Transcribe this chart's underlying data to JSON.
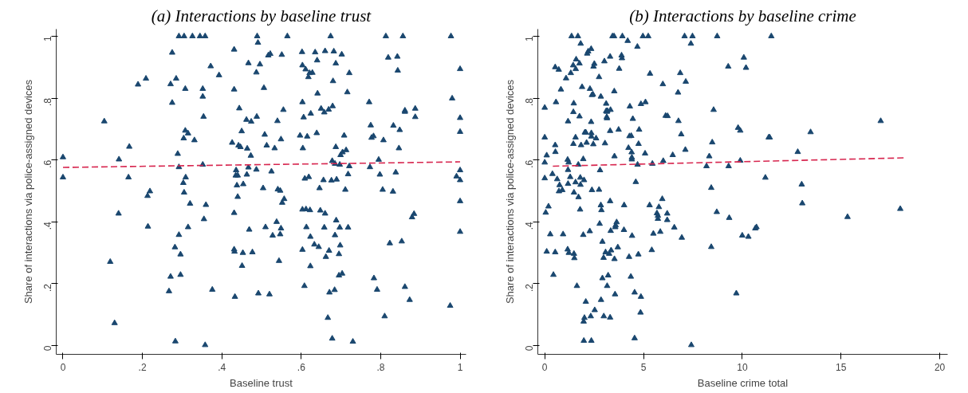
{
  "chart_data": [
    {
      "type": "scatter",
      "title": "(a) Interactions by baseline trust",
      "xlabel": "Baseline trust",
      "ylabel": "Share of interactions via police-assigned devices",
      "marker": "triangle",
      "grid": false,
      "xlim": [
        -0.017,
        1.015
      ],
      "ylim": [
        -0.028,
        1.023
      ],
      "xticks": [
        0,
        {
          "value": 0.2,
          "label": ".2"
        },
        {
          "value": 0.4,
          "label": ".4"
        },
        {
          "value": 0.6,
          "label": ".6"
        },
        {
          "value": 0.8,
          "label": ".8"
        },
        1
      ],
      "yticks": [
        0,
        {
          "value": 0.2,
          "label": ".2"
        },
        {
          "value": 0.4,
          "label": ".4"
        },
        {
          "value": 0.6,
          "label": ".6"
        },
        {
          "value": 0.8,
          "label": ".8"
        },
        1
      ],
      "series": [
        {
          "color": "#1a476f",
          "x": [
            0,
            0,
            0.104,
            0.119,
            0.13,
            0.14,
            0.141,
            0.167,
            0.165,
            0.189,
            0.209,
            0.213,
            0.219,
            0.214,
            0.267,
            0.271,
            0.271,
            0.275,
            0.275,
            0.282,
            0.283,
            0.285,
            0.289,
            0.292,
            0.292,
            0.292,
            0.296,
            0.296,
            0.305,
            0.304,
            0.305,
            0.303,
            0.308,
            0.308,
            0.309,
            0.315,
            0.315,
            0.32,
            0.326,
            0.331,
            0.345,
            0.358,
            0.352,
            0.352,
            0.354,
            0.352,
            0.36,
            0.355,
            0.358,
            0.372,
            0.376,
            0.393,
            0.431,
            0.431,
            0.426,
            0.436,
            0.435,
            0.44,
            0.438,
            0.44,
            0.431,
            0.431,
            0.432,
            0.433,
            0.444,
            0.442,
            0.447,
            0.45,
            0.451,
            0.453,
            0.454,
            0.462,
            0.464,
            0.463,
            0.467,
            0.467,
            0.469,
            0.473,
            0.474,
            0.477,
            0.487,
            0.488,
            0.487,
            0.489,
            0.491,
            0.492,
            0.496,
            0.506,
            0.508,
            0.51,
            0.504,
            0.513,
            0.517,
            0.522,
            0.52,
            0.525,
            0.528,
            0.533,
            0.538,
            0.54,
            0.541,
            0.544,
            0.547,
            0.547,
            0.549,
            0.549,
            0.551,
            0.552,
            0.555,
            0.557,
            0.565,
            0.597,
            0.602,
            0.603,
            0.603,
            0.604,
            0.603,
            0.603,
            0.606,
            0.608,
            0.609,
            0.611,
            0.612,
            0.613,
            0.615,
            0.618,
            0.619,
            0.622,
            0.621,
            0.623,
            0.623,
            0.624,
            0.628,
            0.633,
            0.635,
            0.639,
            0.64,
            0.641,
            0.644,
            0.646,
            0.648,
            0.65,
            0.656,
            0.658,
            0.658,
            0.66,
            0.66,
            0.662,
            0.667,
            0.669,
            0.67,
            0.671,
            0.674,
            0.676,
            0.678,
            0.678,
            0.679,
            0.68,
            0.682,
            0.684,
            0.685,
            0.685,
            0.687,
            0.688,
            0.687,
            0.689,
            0.695,
            0.695,
            0.697,
            0.697,
            0.698,
            0.699,
            0.702,
            0.703,
            0.704,
            0.708,
            0.711,
            0.713,
            0.716,
            0.718,
            0.718,
            0.721,
            0.721,
            0.73,
            0.771,
            0.773,
            0.775,
            0.777,
            0.782,
            0.783,
            0.791,
            0.795,
            0.798,
            0.805,
            0.807,
            0.81,
            0.813,
            0.819,
            0.823,
            0.831,
            0.832,
            0.838,
            0.842,
            0.843,
            0.846,
            0.848,
            0.853,
            0.856,
            0.861,
            0.861,
            0.861,
            0.873,
            0.879,
            0.884,
            0.887,
            0.887,
            0.975,
            0.977,
            0.98,
            0.991,
            1,
            1,
            1,
            1,
            1,
            1,
            1
          ],
          "values": [
            0.609,
            0.544,
            0.725,
            0.271,
            0.073,
            0.427,
            0.602,
            0.643,
            0.544,
            0.844,
            0.863,
            0.484,
            0.499,
            0.385,
            0.176,
            0.223,
            0.845,
            0.947,
            0.785,
            0.318,
            0.014,
            0.863,
            0.62,
            1,
            0.358,
            0.577,
            0.295,
            0.229,
            1,
            0.67,
            0.495,
            0.526,
            0.695,
            0.83,
            0.544,
            0.686,
            0.383,
            0.459,
            1,
            0.664,
            1,
            1,
            0.83,
            0.805,
            0.74,
            0.585,
            0.455,
            0.409,
            0.002,
            0.903,
            0.181,
            0.874,
            0.957,
            0.828,
            0.656,
            0.567,
            0.55,
            0.55,
            0.518,
            0.481,
            0.429,
            0.311,
            0.304,
            0.158,
            0.767,
            0.647,
            0.642,
            0.693,
            0.258,
            0.3,
            0.522,
            0.73,
            0.637,
            0.553,
            0.576,
            0.913,
            0.375,
            0.614,
            0.724,
            0.302,
            0.883,
            0.74,
            0.569,
            1,
            0.979,
            0.169,
            0.909,
            0.833,
            0.682,
            0.383,
            0.509,
            0.647,
            0.938,
            0.943,
            0.166,
            0.563,
            0.356,
            0.638,
            0.4,
            0.726,
            0.505,
            0.274,
            0.501,
            0.36,
            0.667,
            0.379,
            0.94,
            0.462,
            0.762,
            0.474,
            1,
            0.679,
            0.949,
            0.787,
            0.906,
            0.638,
            0.44,
            0.31,
            0.738,
            0.193,
            0.54,
            0.893,
            0.441,
            0.383,
            0.676,
            0.868,
            0.545,
            0.438,
            0.881,
            0.352,
            0.257,
            0.75,
            0.882,
            0.327,
            0.948,
            0.687,
            0.922,
            0.815,
            0.319,
            0.509,
            0.437,
            0.766,
            0.535,
            0.382,
            0.754,
            0.952,
            0.427,
            0.287,
            0.09,
            0.763,
            0.307,
            0.172,
            1,
            0.534,
            0.597,
            0.023,
            0.774,
            0.855,
            0.951,
            0.18,
            0.588,
            0.357,
            0.912,
            0.405,
            0.642,
            0.537,
            0.296,
            0.227,
            0.585,
            0.382,
            0.324,
            0.616,
            0.941,
            0.233,
            0.625,
            0.679,
            0.504,
            0.632,
            0.819,
            0.554,
            0.382,
            0.881,
            0.58,
            0.013,
            0.787,
            0.577,
            0.712,
            0.672,
            0.677,
            0.218,
            0.181,
            0.601,
            0.553,
            0.504,
            0.664,
            0.095,
            1,
            0.931,
            0.331,
            0.498,
            0.711,
            0.56,
            0.934,
            0.889,
            0.638,
            0.697,
            0.337,
            1,
            0.76,
            0.19,
            0.756,
            0.148,
            0.415,
            0.426,
            0.766,
            0.739,
            0.129,
            1,
            0.799,
            0.547,
            0.894,
            0.736,
            0.691,
            0.567,
            0.535,
            0.467,
            0.368
          ]
        },
        {
          "type": "line",
          "color": "#d7264f",
          "line_style": "dashed",
          "marker": "none",
          "x": [
            0,
            1
          ],
          "values": [
            0.576,
            0.594
          ]
        }
      ]
    },
    {
      "type": "scatter",
      "title": "(b) Interactions by baseline crime",
      "xlabel": "Baseline crime total",
      "ylabel": "Share of interactions via police-assigned devices",
      "marker": "triangle",
      "grid": false,
      "xlim": [
        -0.35,
        20.4
      ],
      "ylim": [
        -0.028,
        1.023
      ],
      "xticks": [
        0,
        5,
        10,
        15,
        20
      ],
      "yticks": [
        0,
        {
          "value": 0.2,
          "label": ".2"
        },
        {
          "value": 0.4,
          "label": ".4"
        },
        {
          "value": 0.6,
          "label": ".6"
        },
        {
          "value": 0.8,
          "label": ".8"
        },
        1
      ],
      "series": [
        {
          "color": "#1a476f",
          "x": [
            0,
            0,
            0,
            0,
            0.05,
            0.1,
            0.1,
            0.19,
            0.28,
            0.39,
            0.44,
            0.53,
            0.53,
            0.54,
            0.53,
            0.57,
            0.63,
            0.71,
            0.75,
            0.72,
            0.82,
            0.89,
            0.93,
            1.08,
            1.16,
            1.18,
            1.18,
            1.18,
            1.21,
            1.16,
            1.22,
            1.29,
            1.32,
            1.36,
            1.44,
            1.45,
            1.45,
            1.47,
            1.48,
            1.48,
            1.5,
            1.56,
            1.56,
            1.57,
            1.59,
            1.63,
            1.68,
            1.7,
            1.71,
            1.76,
            1.76,
            1.79,
            1.8,
            1.81,
            1.82,
            1.84,
            1.89,
            1.95,
            1.95,
            1.97,
            1.98,
            1.99,
            2.01,
            2.03,
            2.08,
            2.08,
            2.12,
            2.15,
            2.2,
            2.28,
            2.29,
            2.33,
            2.35,
            2.35,
            2.36,
            2.36,
            2.36,
            2.39,
            2.39,
            2.44,
            2.46,
            2.47,
            2.51,
            2.53,
            2.6,
            2.75,
            2.75,
            2.78,
            2.8,
            2.84,
            2.85,
            2.84,
            2.87,
            2.92,
            2.92,
            2.98,
            2.99,
            3.02,
            3.05,
            3.08,
            3.11,
            3.11,
            3.14,
            3.15,
            3.15,
            3.16,
            3.17,
            3.21,
            3.26,
            3.31,
            3.31,
            3.31,
            3.33,
            3.34,
            3.36,
            3.31,
            3.43,
            3.51,
            3.52,
            3.53,
            3.53,
            3.56,
            3.57,
            3.59,
            3.64,
            3.7,
            3.74,
            3.77,
            3.89,
            3.91,
            3.93,
            4.01,
            4.02,
            4.2,
            4.24,
            4.27,
            4.29,
            4.31,
            4.36,
            4.38,
            4.4,
            4.41,
            4.42,
            4.41,
            4.46,
            4.55,
            4.55,
            4.61,
            4.69,
            4.7,
            4.74,
            4.75,
            4.78,
            4.85,
            4.87,
            4.87,
            4.97,
            5.08,
            5.1,
            5.24,
            5.31,
            5.33,
            5.42,
            5.45,
            5.5,
            5.68,
            5.73,
            5.73,
            5.78,
            5.85,
            5.95,
            5.98,
            6.0,
            6.12,
            6.22,
            6.2,
            6.2,
            6.48,
            6.56,
            6.75,
            6.77,
            6.86,
            6.91,
            6.94,
            7.12,
            7.14,
            7.08,
            7.4,
            7.48,
            7.42,
            8.19,
            8.33,
            8.43,
            8.43,
            8.48,
            8.55,
            8.73,
            8.71,
            9.29,
            9.31,
            9.34,
            9.7,
            9.79,
            9.9,
            9.9,
            10.0,
            10.08,
            10.19,
            10.31,
            10.66,
            10.72,
            11.17,
            11.34,
            11.39,
            11.47,
            12.81,
            13.01,
            13.04,
            13.46,
            15.33,
            17.01,
            18.0
          ],
          "values": [
            0.673,
            0.769,
            0.592,
            0.541,
            0.43,
            0.304,
            0.615,
            0.45,
            0.36,
            0.555,
            0.229,
            0.9,
            0.648,
            0.626,
            0.302,
            0.787,
            0.538,
            0.892,
            0.519,
            0.499,
            0.828,
            0.503,
            0.36,
            0.864,
            0.601,
            0.725,
            0.568,
            0.523,
            0.592,
            0.311,
            0.3,
            0.545,
            0.881,
            1,
            0.906,
            0.652,
            0.755,
            0.783,
            0.495,
            0.297,
            0.283,
            0.673,
            0.528,
            0.894,
            0.925,
            0.193,
            1,
            0.585,
            0.48,
            0.741,
            0.912,
            0.44,
            0.543,
            0.52,
            0.976,
            0.648,
            0.836,
            0.603,
            0.358,
            0.078,
            0.016,
            0.535,
            0.09,
            0.689,
            0.142,
            0.689,
            0.656,
            0.944,
            0.951,
            0.37,
            0.83,
            0.095,
            0.959,
            0.723,
            0.016,
            0.687,
            0.676,
            0.503,
            0.81,
            0.812,
            0.651,
            0.902,
            0.911,
            0.115,
            0.67,
            0.868,
            0.504,
            0.394,
            0.567,
            0.805,
            0.148,
            0.454,
            0.438,
            0.218,
            0.336,
            0.284,
            0.095,
            0.919,
            0.654,
            0.302,
            0.782,
            0.758,
            0.739,
            0.735,
            0.756,
            0.193,
            0.759,
            0.227,
            0.297,
            0.091,
            0.467,
            0.934,
            0.762,
            0.371,
            0.308,
            0.694,
            1,
            1,
            0.822,
            0.612,
            0.28,
            0.166,
            0.383,
            0.389,
            0.399,
            0.318,
            0.698,
            0.895,
            0.938,
            0.929,
            1,
            0.374,
            0.454,
            0.985,
            0.639,
            0.287,
            0.677,
            0.773,
            0.223,
            0.678,
            0.625,
            0.602,
            0.355,
            0.608,
            0.733,
            0.024,
            0.172,
            0.529,
            0.966,
            0.585,
            0.295,
            0.652,
            0.698,
            0.107,
            0.158,
            0.781,
            1,
            0.621,
            0.787,
            1,
            0.454,
            0.879,
            0.309,
            0.588,
            0.362,
            0.428,
            0.42,
            0.41,
            0.448,
            0.368,
            0.474,
            0.845,
            0.597,
            0.743,
            0.742,
            0.427,
            0.406,
            0.616,
            0.382,
            0.818,
            0.726,
            0.881,
            0.683,
            0.349,
            0.633,
            0.853,
            1,
            0.976,
            1,
            0.002,
            0.58,
            0.612,
            0.51,
            0.319,
            0.657,
            0.762,
            1,
            0.432,
            0.902,
            0.58,
            0.413,
            0.169,
            0.704,
            0.695,
            0.598,
            0.356,
            0.931,
            0.898,
            0.352,
            0.379,
            0.383,
            0.543,
            0.673,
            0.673,
            1,
            0.626,
            0.521,
            0.46,
            0.69,
            0.416,
            0.726,
            0.442
          ]
        },
        {
          "type": "line",
          "color": "#d7264f",
          "line_style": "dashed",
          "marker": "none",
          "x": [
            0.41,
            18.29
          ],
          "values": [
            0.58,
            0.607
          ]
        }
      ]
    }
  ]
}
